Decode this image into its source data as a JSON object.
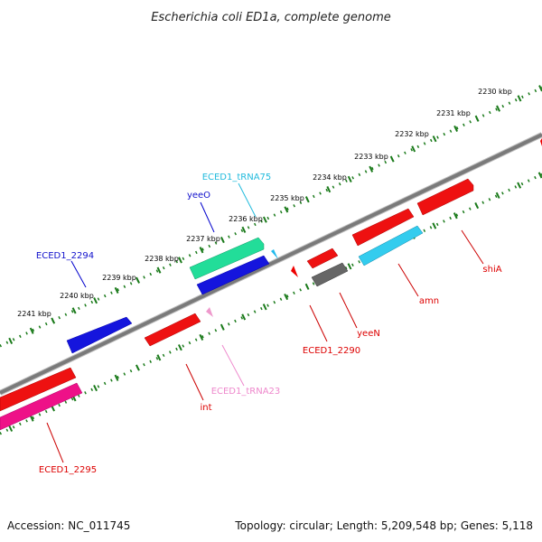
{
  "title": "Escherichia coli ED1a, complete genome",
  "footer": {
    "accession": "Accession: NC_011745",
    "summary": "Topology: circular; Length: 5,209,548 bp; Genes: 5,118"
  },
  "ruler": {
    "ticks": [
      "2230 kbp",
      "2231 kbp",
      "2232 kbp",
      "2233 kbp",
      "2234 kbp",
      "2235 kbp",
      "2236 kbp",
      "2237 kbp",
      "2238 kbp",
      "2239 kbp",
      "2240 kbp",
      "2241 kbp"
    ]
  },
  "genes": [
    {
      "label": "shiA",
      "color": "#dd0000"
    },
    {
      "label": "amn",
      "color": "#dd0000"
    },
    {
      "label": "yeeN",
      "color": "#dd0000"
    },
    {
      "label": "ECED1_2290",
      "color": "#dd0000"
    },
    {
      "label": "ECED1_tRNA75",
      "color": "#22bbdd"
    },
    {
      "label": "yeeO",
      "color": "#1111cc"
    },
    {
      "label": "ECED1_2294",
      "color": "#1111cc"
    },
    {
      "label": "int",
      "color": "#dd0000"
    },
    {
      "label": "ECED1_tRNA23",
      "color": "#ee88cc"
    },
    {
      "label": "ECED1_2295",
      "color": "#dd0000"
    }
  ],
  "colors": {
    "backbone": "#808080",
    "ruler_dots": "#1a7a1a",
    "cds_forward": "#ee0000",
    "cds_reverse": "#1515dd",
    "trna_teal": "#22dd99",
    "trna_cyan": "#33ccee",
    "pseudo_gray": "#666666",
    "magenta": "#ee1188"
  }
}
